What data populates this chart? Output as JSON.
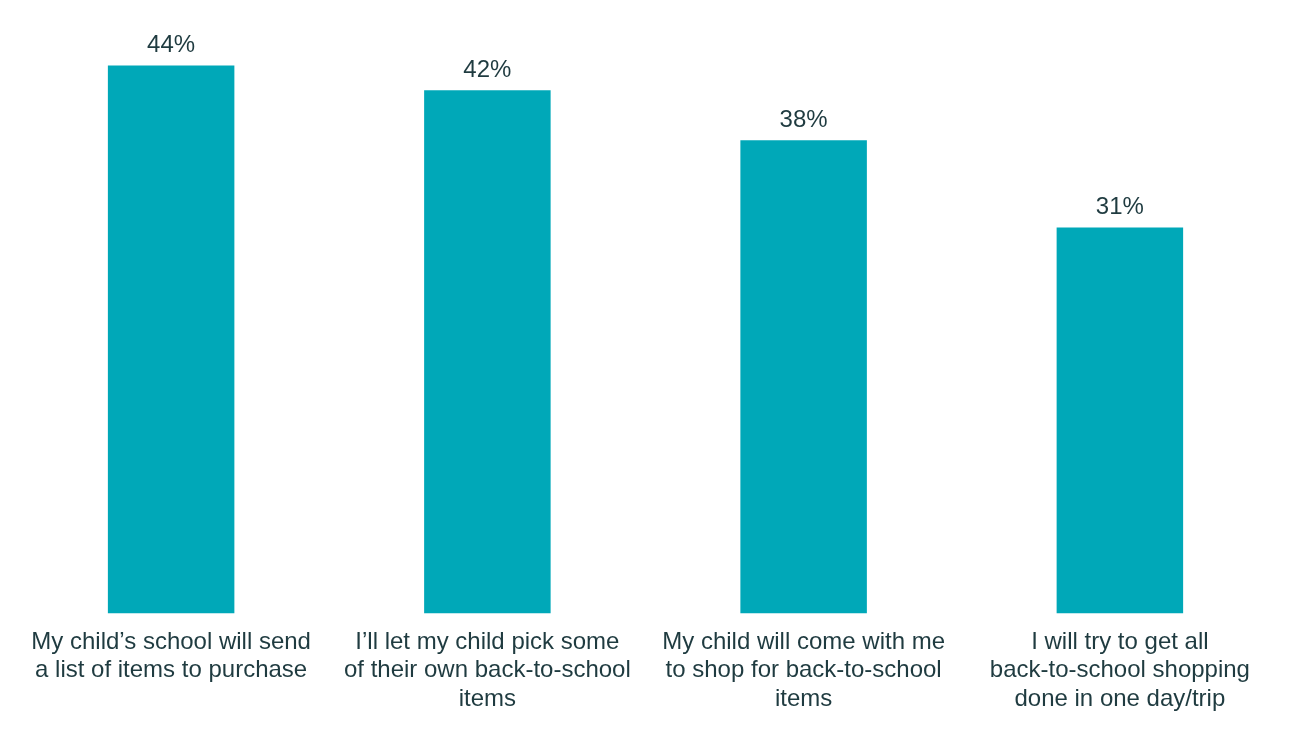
{
  "chart_data": {
    "type": "bar",
    "categories": [
      "My child’s school will send a list of items to purchase",
      "I’ll let my child pick some of their own back-to-school items",
      "My child will come with me to shop for back-to-school items",
      "I will try to get all back-to-school shopping done in one day/trip"
    ],
    "values": [
      44,
      42,
      38,
      31
    ],
    "value_labels": [
      "44%",
      "42%",
      "38%",
      "31%"
    ],
    "color": "#00a8b8",
    "grid": false,
    "legend": false
  }
}
